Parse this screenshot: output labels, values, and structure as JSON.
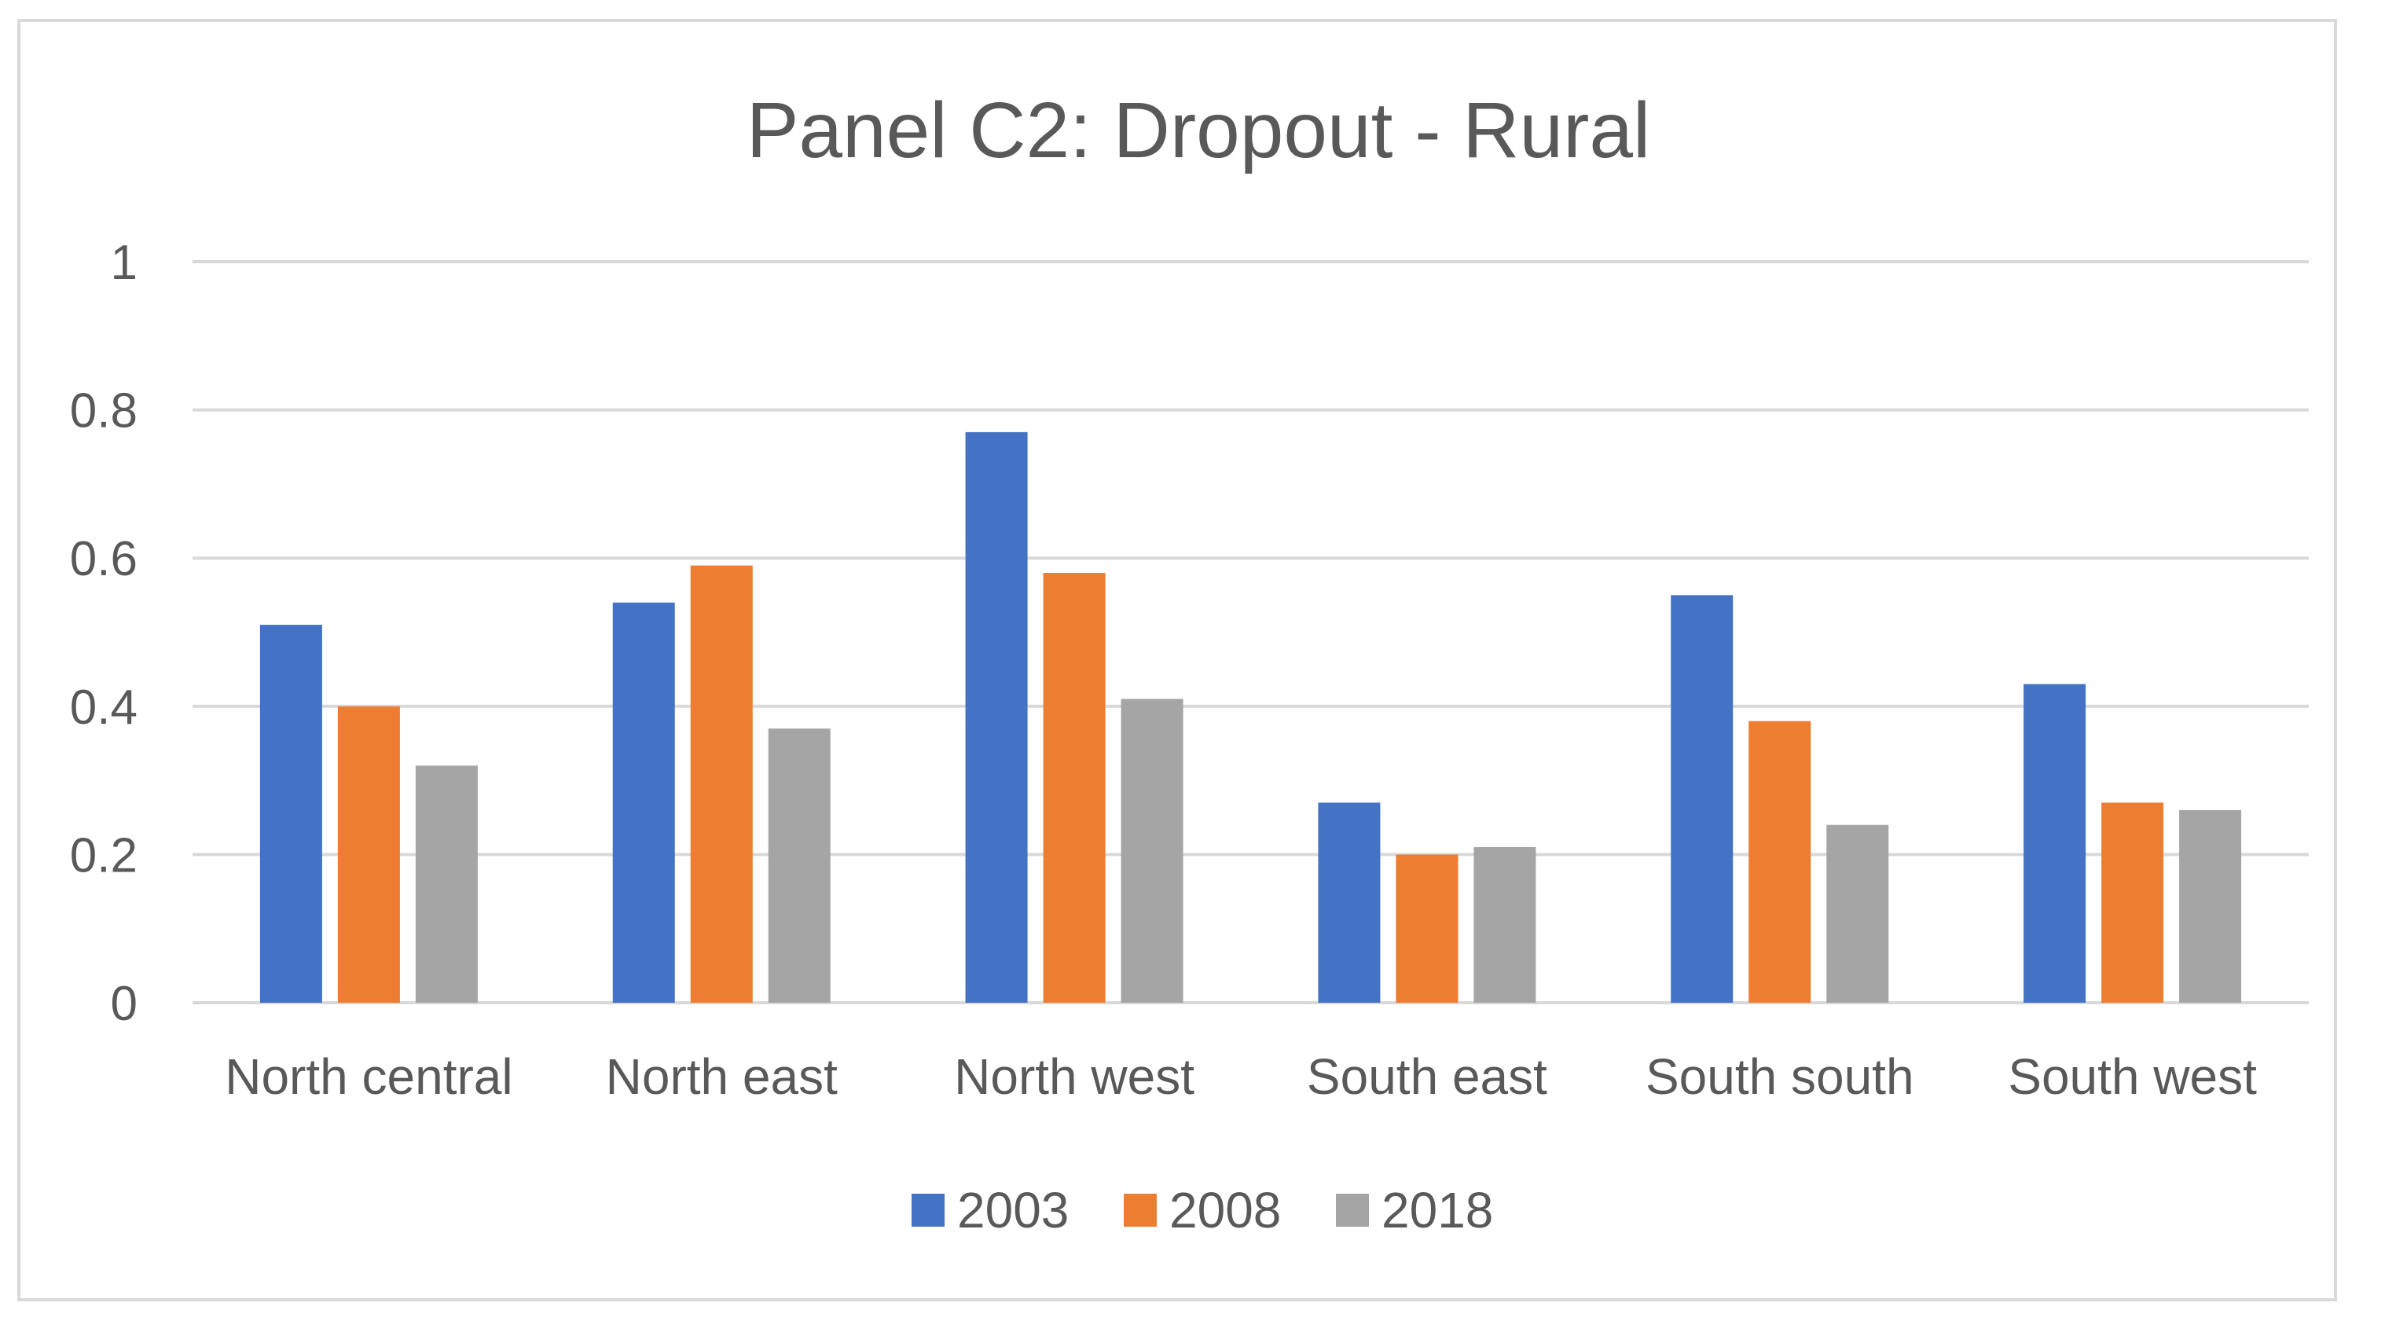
{
  "chart_data": {
    "type": "bar",
    "title": "Panel C2: Dropout - Rural",
    "xlabel": "",
    "ylabel": "",
    "ylim": [
      0,
      1
    ],
    "yticks": [
      "0",
      "0.2",
      "0.4",
      "0.6",
      "0.8",
      "1"
    ],
    "grid": true,
    "legend_position": "bottom",
    "categories": [
      "North central",
      "North east",
      "North west",
      "South east",
      "South south",
      "South west"
    ],
    "series": [
      {
        "name": "2003",
        "color": "#4472c4",
        "values": [
          0.51,
          0.54,
          0.77,
          0.27,
          0.55,
          0.43
        ]
      },
      {
        "name": "2008",
        "color": "#ed7d31",
        "values": [
          0.4,
          0.59,
          0.58,
          0.2,
          0.38,
          0.27
        ]
      },
      {
        "name": "2018",
        "color": "#a5a5a5",
        "values": [
          0.32,
          0.37,
          0.41,
          0.21,
          0.24,
          0.26
        ]
      }
    ]
  }
}
